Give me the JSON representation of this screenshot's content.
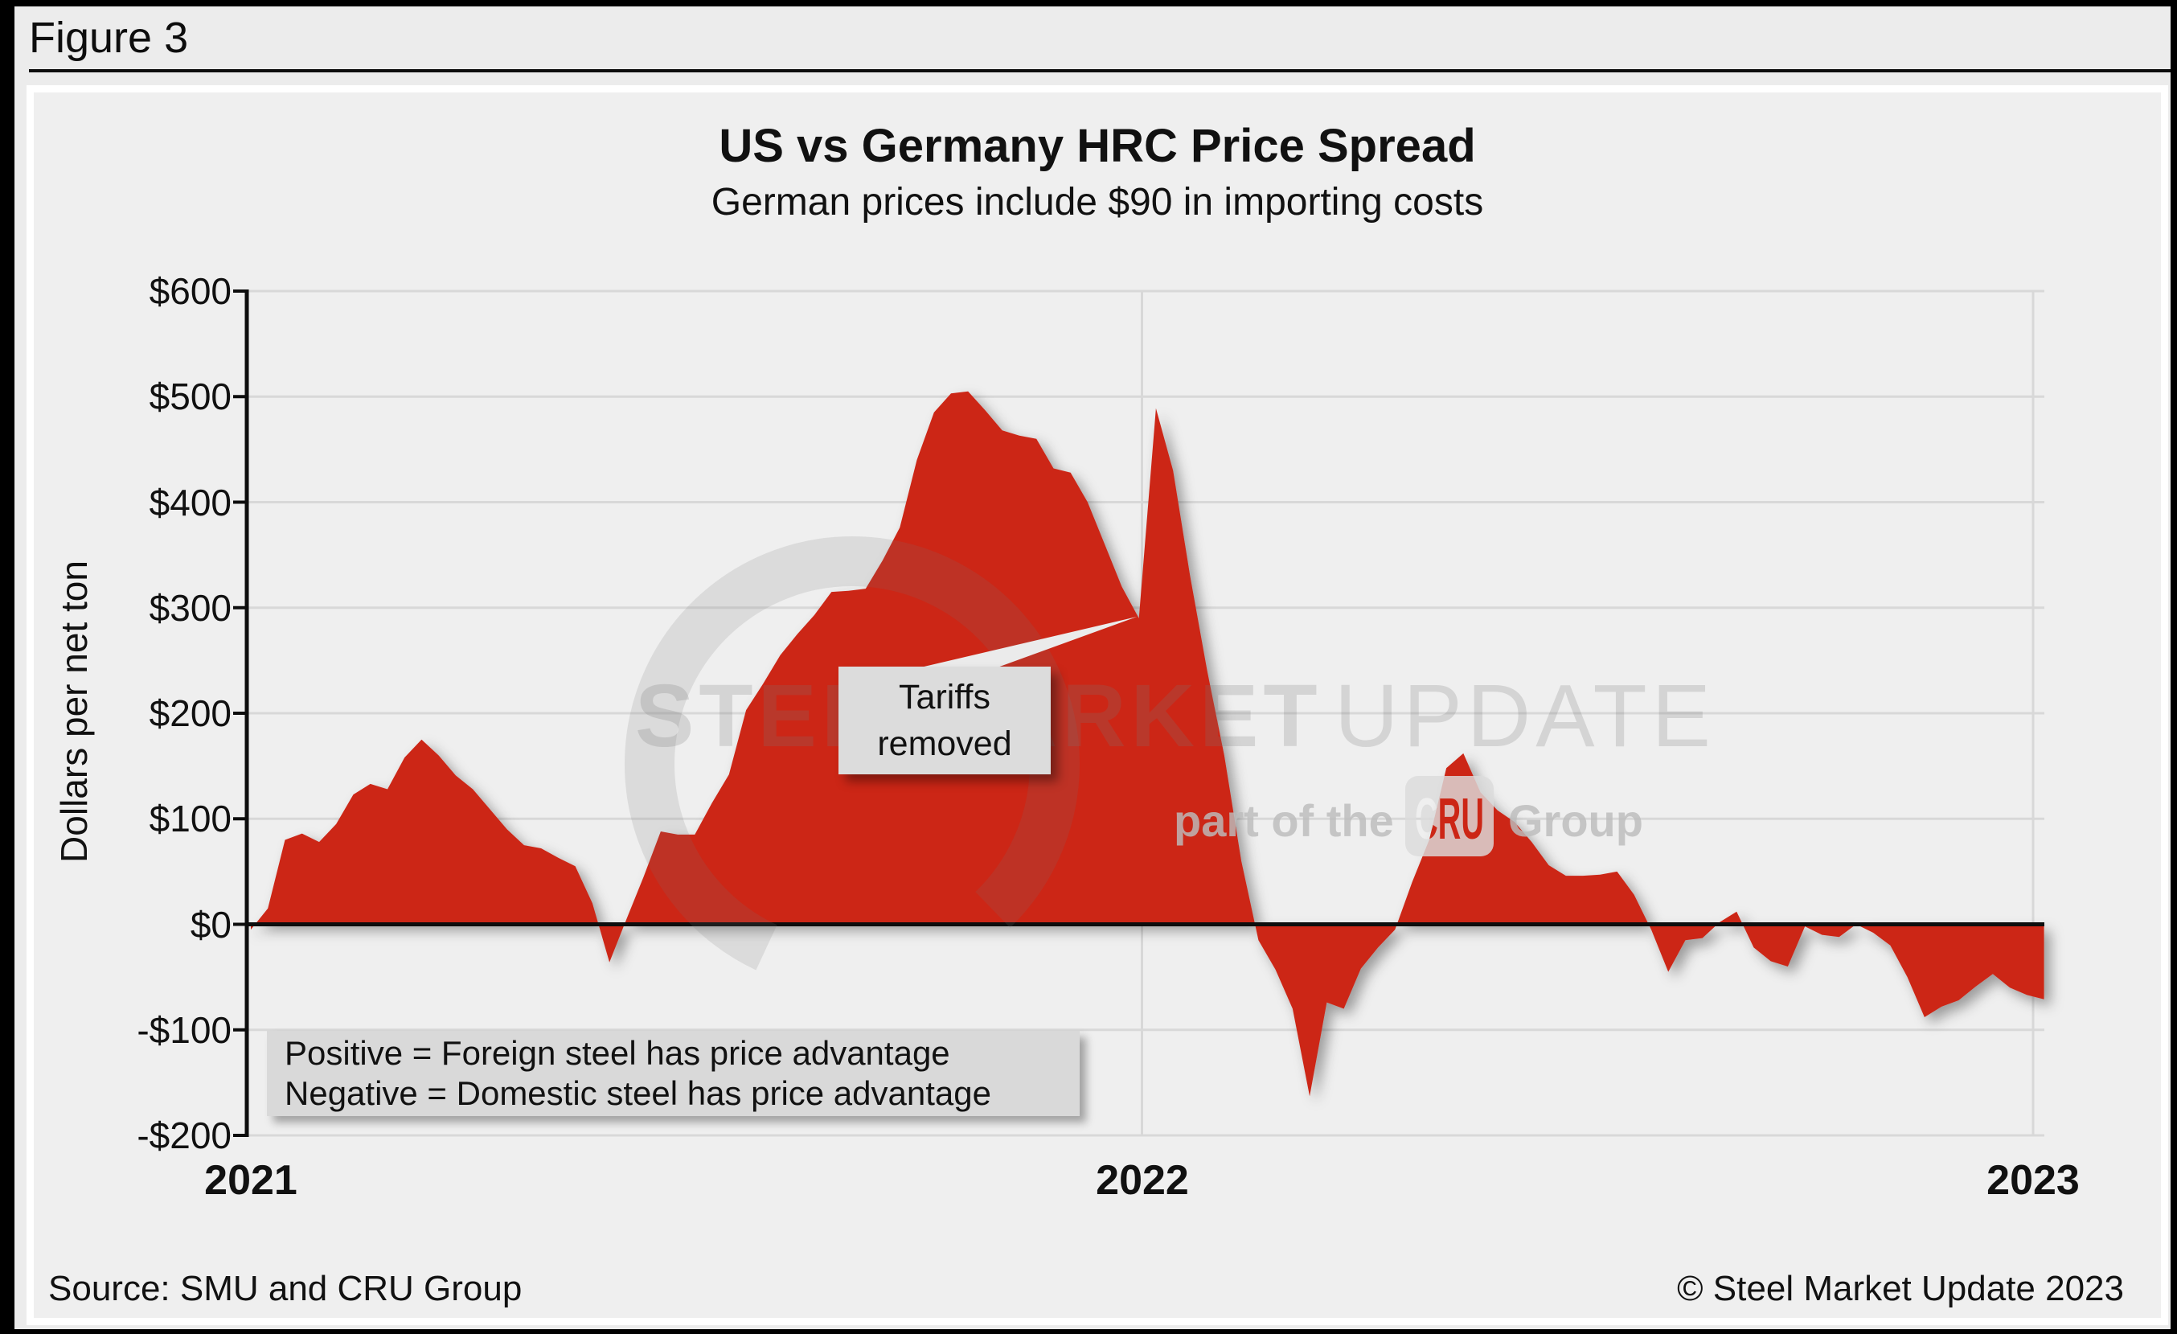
{
  "figure_label": "Figure 3",
  "title": "US vs Germany HRC Price Spread",
  "subtitle": "German prices include $90 in importing costs",
  "footer": {
    "source": "Source: SMU and CRU Group",
    "copyright": "© Steel Market Update 2023"
  },
  "note_box": {
    "line1": "Positive = Foreign steel has price advantage",
    "line2": "Negative = Domestic steel has price advantage"
  },
  "annotation_box": {
    "line1": "Tariffs",
    "line2": "removed"
  },
  "watermark": {
    "word1": "STEEL",
    "word2": "MARKET",
    "word3": "UPDATE",
    "tagline_prefix": "part of the",
    "tagline_badge": "CRU",
    "tagline_suffix": "Group"
  },
  "colors": {
    "area_red": "#cc2518",
    "grid": "#d8d8d8",
    "axis_black": "#0d0d0d",
    "panel_bg": "#efefef",
    "page_bg": "#ececec",
    "box_gray": "#dcdcdc",
    "watermark_gray": "#787878",
    "callout_wedge": "#ebebeb"
  },
  "chart_data": {
    "type": "area",
    "title": "US vs Germany HRC Price Spread",
    "subtitle": "German prices include $90 in importing costs",
    "ylabel": "Dollars per net ton",
    "xlabel": "",
    "ylim": [
      -200,
      600
    ],
    "y_tick_step": 100,
    "y_tick_labels": [
      "$600",
      "$500",
      "$400",
      "$300",
      "$200",
      "$100",
      "$0",
      "-$100",
      "-$200"
    ],
    "x_tick_labels": [
      "2021",
      "2022",
      "2023"
    ],
    "x_start_year": 2021,
    "points_per_year": 52.18,
    "sampling": "weekly",
    "unit": "USD per net ton",
    "series_name": "US HRC price minus German HRC price (incl. $90 importing costs)",
    "grid": true,
    "zero_line": true,
    "legend_position": "none",
    "values": [
      -5,
      15,
      80,
      86,
      78,
      95,
      123,
      133,
      128,
      158,
      175,
      160,
      141,
      128,
      109,
      90,
      75,
      72,
      63,
      55,
      20,
      -36,
      5,
      45,
      88,
      85,
      85,
      115,
      142,
      203,
      228,
      255,
      275,
      293,
      315,
      316,
      318,
      345,
      376,
      440,
      485,
      503,
      505,
      487,
      468,
      463,
      460,
      432,
      428,
      400,
      360,
      320,
      290,
      489,
      430,
      330,
      240,
      160,
      60,
      -15,
      -43,
      -80,
      -163,
      -74,
      -80,
      -42,
      -22,
      -5,
      40,
      80,
      148,
      162,
      125,
      108,
      97,
      78,
      56,
      46,
      46,
      47,
      50,
      28,
      -5,
      -45,
      -15,
      -13,
      2,
      12,
      -22,
      -35,
      -40,
      -2,
      -10,
      -12,
      0,
      -8,
      -20,
      -50,
      -88,
      -78,
      -72,
      -59,
      -47,
      -60,
      -67,
      -71
    ],
    "annotations": [
      {
        "label": "Tariffs removed",
        "at_year": 2022.0,
        "value_before": 290,
        "value_after": 489
      }
    ]
  }
}
